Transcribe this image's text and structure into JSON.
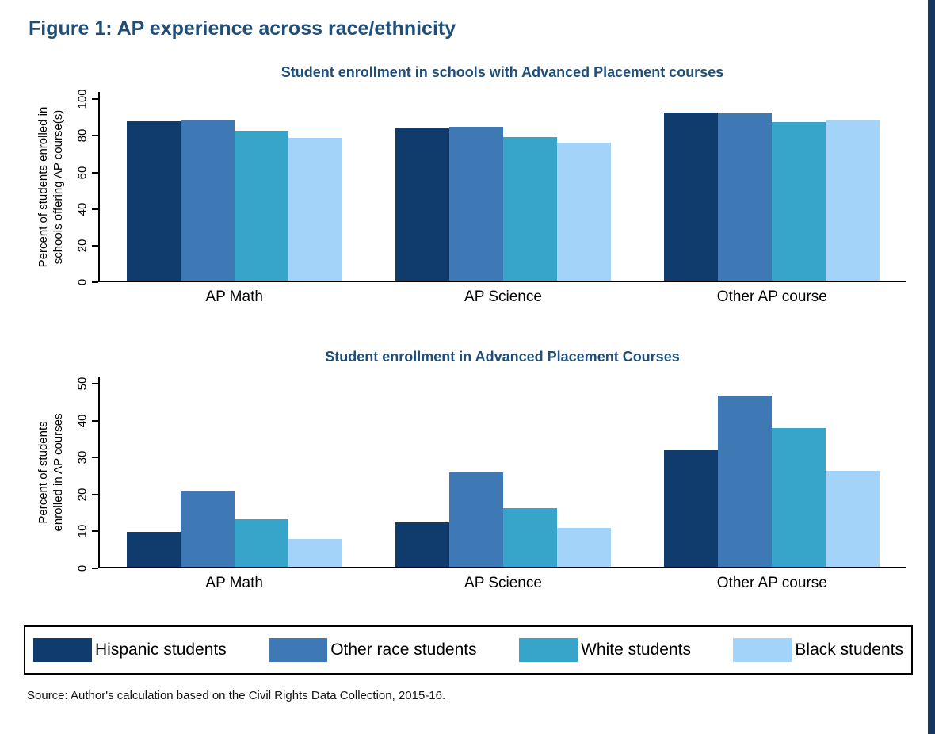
{
  "page": {
    "figure_title": "Figure 1: AP experience across race/ethnicity",
    "source": "Source: Author's calculation based on the Civil Rights Data Collection, 2015-16.",
    "title_color": "#1f4e79",
    "right_strip_color": "#17365d"
  },
  "legend": {
    "items": [
      {
        "label": "Hispanic students",
        "color": "#103c6d"
      },
      {
        "label": "Other race students",
        "color": "#3e79b6"
      },
      {
        "label": "White students",
        "color": "#37a5c9"
      },
      {
        "label": "Black students",
        "color": "#a3d3f9"
      }
    ]
  },
  "chart_data": [
    {
      "type": "bar",
      "title": "Student enrollment in schools with Advanced Placement courses",
      "ylabel": "Percent of students enrolled in\nschools offering AP course(s)",
      "categories": [
        "AP Math",
        "AP Science",
        "Other AP course"
      ],
      "yticks": [
        0,
        20,
        40,
        60,
        80,
        100
      ],
      "ylim": [
        0,
        104
      ],
      "grid": false,
      "legend_position": "bottom-shared",
      "series": [
        {
          "name": "Hispanic students",
          "color": "#103c6d",
          "values": [
            87,
            83,
            92
          ]
        },
        {
          "name": "Other race students",
          "color": "#3e79b6",
          "values": [
            87.5,
            84,
            91.5
          ]
        },
        {
          "name": "White students",
          "color": "#37a5c9",
          "values": [
            82,
            78.5,
            86.5
          ]
        },
        {
          "name": "Black students",
          "color": "#a3d3f9",
          "values": [
            78,
            75.5,
            87.5
          ]
        }
      ]
    },
    {
      "type": "bar",
      "title": "Student enrollment in Advanced Placement Courses",
      "ylabel": "Percent of students\nenrolled in AP courses",
      "categories": [
        "AP Math",
        "AP Science",
        "Other AP course"
      ],
      "yticks": [
        0,
        10,
        20,
        30,
        40,
        50
      ],
      "ylim": [
        0,
        52
      ],
      "grid": false,
      "legend_position": "bottom-shared",
      "series": [
        {
          "name": "Hispanic students",
          "color": "#103c6d",
          "values": [
            9.5,
            12,
            31.5
          ]
        },
        {
          "name": "Other race students",
          "color": "#3e79b6",
          "values": [
            20.5,
            25.5,
            46.5
          ]
        },
        {
          "name": "White students",
          "color": "#37a5c9",
          "values": [
            13,
            16,
            37.5
          ]
        },
        {
          "name": "Black students",
          "color": "#a3d3f9",
          "values": [
            7.5,
            10.5,
            26
          ]
        }
      ]
    }
  ]
}
